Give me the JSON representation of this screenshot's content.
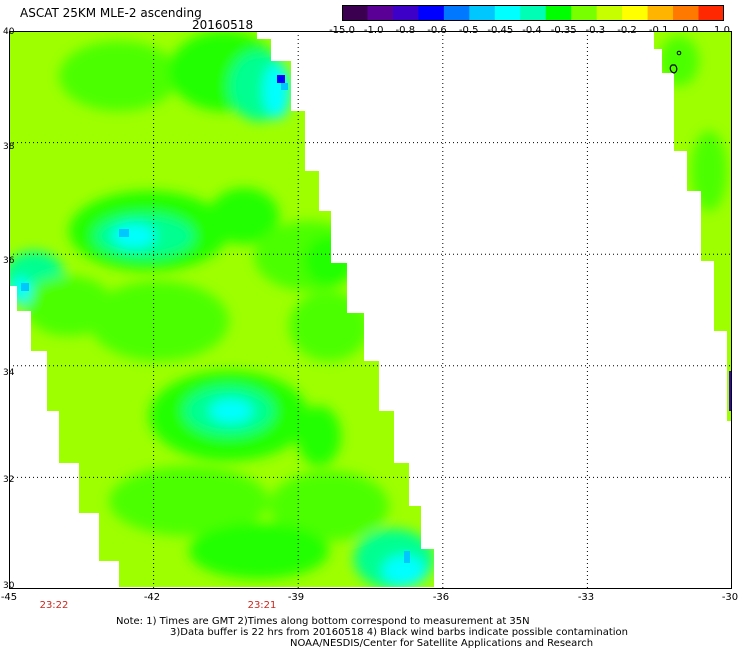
{
  "header": {
    "title": "ASCAT 25KM MLE-2 ascending",
    "date": "20160518"
  },
  "colorbar": {
    "labels": [
      "-15.0",
      "-1.0",
      "-0.8",
      "-0.6",
      "-0.5",
      "-0.45",
      "-0.4",
      "-0.35",
      "-0.3",
      "-0.2",
      "-0.1",
      "0.0",
      "1.0"
    ],
    "colors": [
      "#3c0050",
      "#5a0096",
      "#3c00c8",
      "#0000ff",
      "#0078ff",
      "#00c8ff",
      "#00ffff",
      "#00ffb4",
      "#00ff00",
      "#78ff00",
      "#c8ff00",
      "#ffff00",
      "#ffb400",
      "#ff7800",
      "#ff2800"
    ]
  },
  "map": {
    "lat_labels": [
      "40",
      "38",
      "36",
      "34",
      "32",
      "30"
    ],
    "lon_labels": [
      "-45",
      "-42",
      "-39",
      "-36",
      "-33",
      "-30"
    ],
    "lat_values": [
      40,
      38,
      36,
      34,
      32,
      30
    ],
    "lon_values": [
      -45,
      -42,
      -39,
      -36,
      -33,
      -30
    ],
    "lat_range": [
      30,
      40
    ],
    "lon_range": [
      -45,
      -30
    ],
    "time_labels": [
      "23:22",
      "23:21"
    ],
    "grid": "dotted",
    "swath_colors": {
      "background": "#9eff00",
      "mid_green": "#4cff00",
      "green": "#22ff00",
      "teal": "#00ff90",
      "cyan": "#00ffff",
      "light_blue": "#00c8ff",
      "blue": "#0000ff"
    }
  },
  "notes": {
    "line1": "Note: 1) Times are GMT 2)Times along bottom correspond to measurement at 35N",
    "line2": "3)Data buffer is 22 hrs from 20160518 4) Black wind barbs indicate possible contamination",
    "line3": "NOAA/NESDIS/Center for Satellite Applications and Research"
  }
}
